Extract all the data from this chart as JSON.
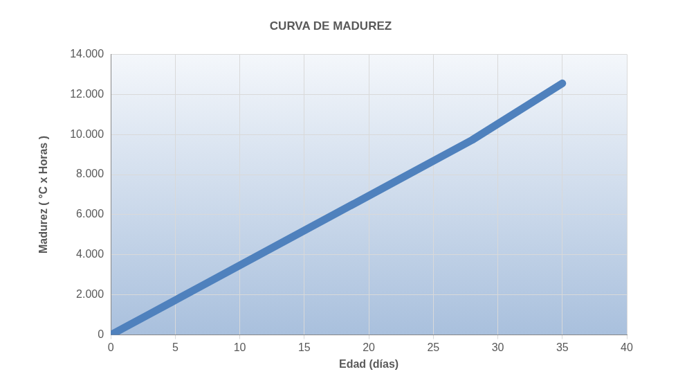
{
  "chart_data": {
    "type": "line",
    "title": "CURVA DE MADUREZ",
    "xlabel": "Edad (días)",
    "ylabel": "Madurez ( °C x Horas )",
    "x": [
      0,
      1,
      3,
      7,
      14,
      21,
      28,
      35
    ],
    "series": [
      {
        "color": "#4f81bd",
        "values": [
          0,
          350,
          1040,
          2430,
          4860,
          7290,
          9720,
          12550
        ]
      }
    ],
    "xlim": [
      0,
      40
    ],
    "xticks": [
      0,
      5,
      10,
      15,
      20,
      25,
      30,
      35,
      40
    ],
    "ylim": [
      0,
      14000
    ],
    "yticks": [
      0,
      {
        "value": 2000,
        "label": "2.000"
      },
      {
        "value": 4000,
        "label": "4.000"
      },
      {
        "value": 6000,
        "label": "6.000"
      },
      {
        "value": 8000,
        "label": "8.000"
      },
      {
        "value": 10000,
        "label": "10.000"
      },
      {
        "value": 12000,
        "label": "12.000"
      },
      {
        "value": 14000,
        "label": "14.000"
      }
    ],
    "grid": true,
    "legend": false,
    "marker": "none",
    "line_style": "solid"
  }
}
